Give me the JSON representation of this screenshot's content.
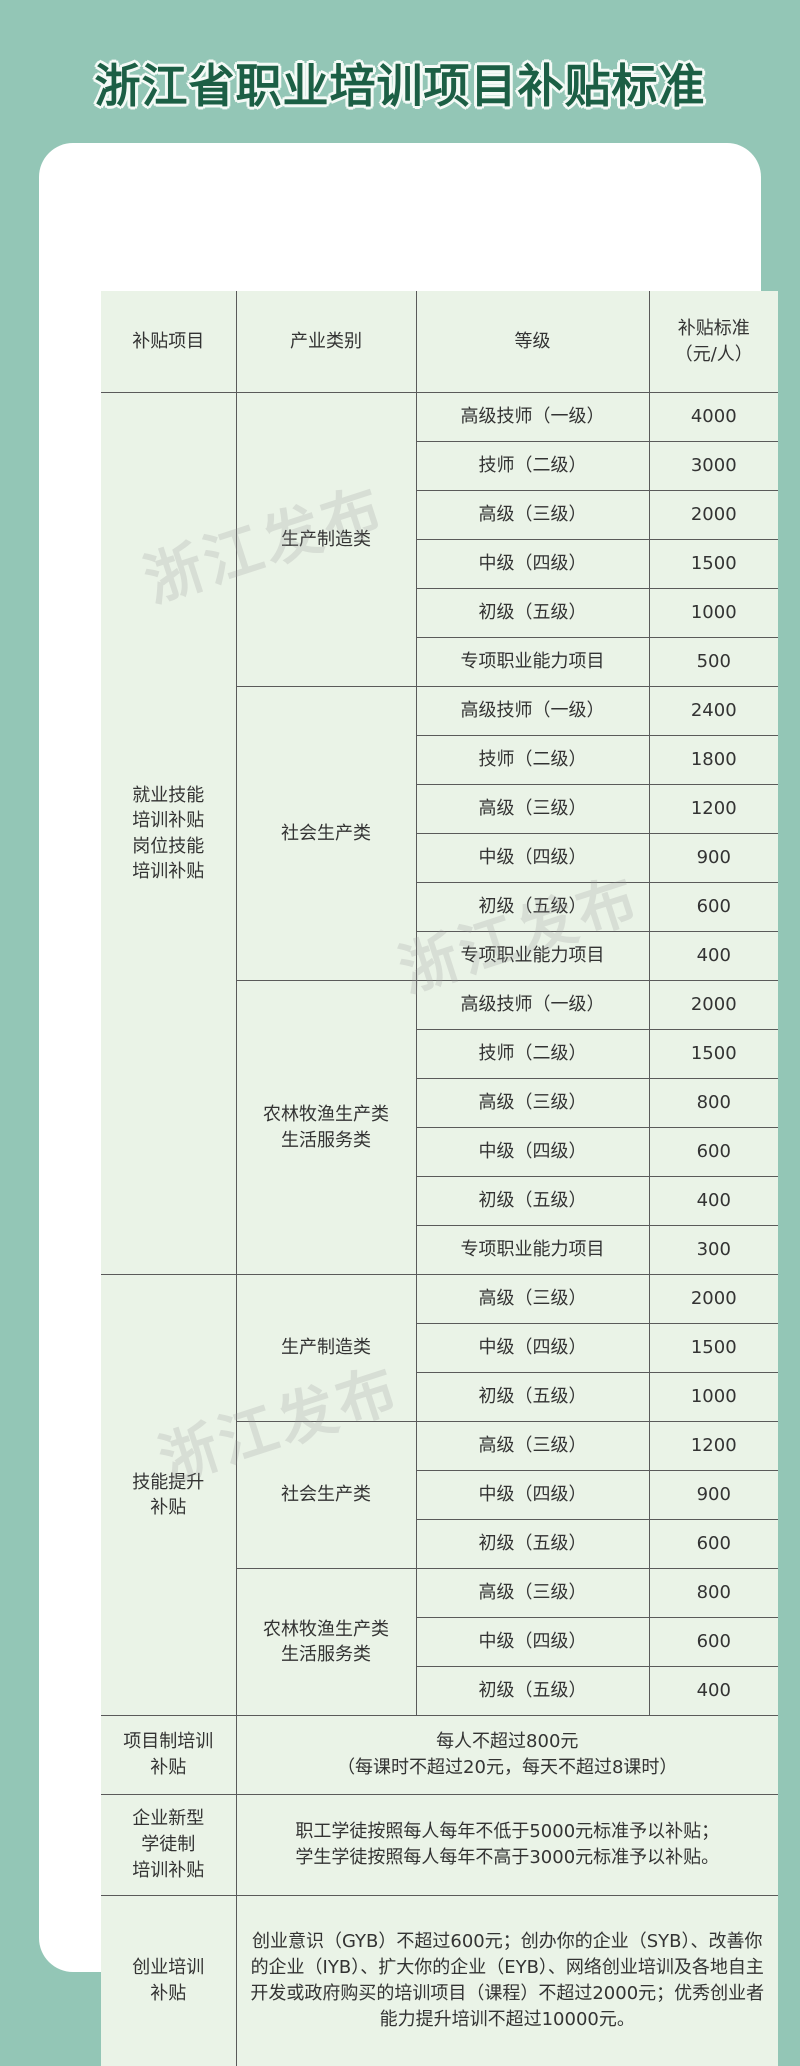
{
  "title": "浙江省职业培训项目补贴标准",
  "watermark": "浙江发布",
  "colors": {
    "background": "#93c6b6",
    "title": "#1c5f45",
    "table_bg": "#eaf3e7",
    "card": "#ffffff"
  },
  "headers": [
    "补贴项目",
    "产业类别",
    "等级",
    "补贴标准\n（元/人）"
  ],
  "sections": [
    {
      "item": "就业技能\n培训补贴\n岗位技能\n培训补贴",
      "categories": [
        {
          "name": "生产制造类",
          "rows": [
            [
              "高级技师（一级）",
              "4000"
            ],
            [
              "技师（二级）",
              "3000"
            ],
            [
              "高级（三级）",
              "2000"
            ],
            [
              "中级（四级）",
              "1500"
            ],
            [
              "初级（五级）",
              "1000"
            ],
            [
              "专项职业能力项目",
              "500"
            ]
          ]
        },
        {
          "name": "社会生产类",
          "rows": [
            [
              "高级技师（一级）",
              "2400"
            ],
            [
              "技师（二级）",
              "1800"
            ],
            [
              "高级（三级）",
              "1200"
            ],
            [
              "中级（四级）",
              "900"
            ],
            [
              "初级（五级）",
              "600"
            ],
            [
              "专项职业能力项目",
              "400"
            ]
          ]
        },
        {
          "name": "农林牧渔生产类\n生活服务类",
          "rows": [
            [
              "高级技师（一级）",
              "2000"
            ],
            [
              "技师（二级）",
              "1500"
            ],
            [
              "高级（三级）",
              "800"
            ],
            [
              "中级（四级）",
              "600"
            ],
            [
              "初级（五级）",
              "400"
            ],
            [
              "专项职业能力项目",
              "300"
            ]
          ]
        }
      ]
    },
    {
      "item": "技能提升\n补贴",
      "categories": [
        {
          "name": "生产制造类",
          "rows": [
            [
              "高级（三级）",
              "2000"
            ],
            [
              "中级（四级）",
              "1500"
            ],
            [
              "初级（五级）",
              "1000"
            ]
          ]
        },
        {
          "name": "社会生产类",
          "rows": [
            [
              "高级（三级）",
              "1200"
            ],
            [
              "中级（四级）",
              "900"
            ],
            [
              "初级（五级）",
              "600"
            ]
          ]
        },
        {
          "name": "农林牧渔生产类\n生活服务类",
          "rows": [
            [
              "高级（三级）",
              "800"
            ],
            [
              "中级（四级）",
              "600"
            ],
            [
              "初级（五级）",
              "400"
            ]
          ]
        }
      ]
    }
  ],
  "other_items": [
    {
      "item": "项目制培训\n补贴",
      "text": "每人不超过800元\n（每课时不超过20元，每天不超过8课时）"
    },
    {
      "item": "企业新型\n学徒制\n培训补贴",
      "text": "职工学徒按照每人每年不低于5000元标准予以补贴；\n学生学徒按照每人每年不高于3000元标准予以补贴。"
    },
    {
      "item": "创业培训\n补贴",
      "text": "创业意识（GYB）不超过600元；创办你的企业（SYB）、改善你的企业（IYB）、扩大你的企业（EYB）、网络创业培训及各地自主开发或政府购买的培训项目（课程）不超过2000元；优秀创业者能力提升培训不超过10000元。"
    }
  ]
}
